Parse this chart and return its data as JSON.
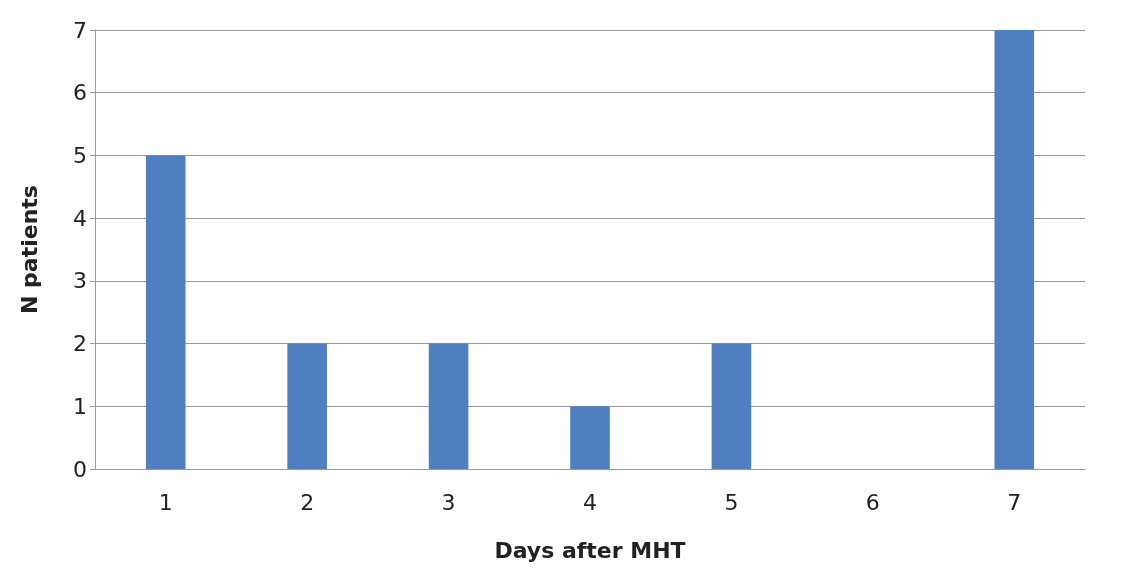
{
  "chart_data": {
    "type": "bar",
    "xlabel": "Days after MHT",
    "ylabel": "N patients",
    "categories": [
      "1",
      "2",
      "3",
      "4",
      "5",
      "6",
      "7"
    ],
    "values": [
      5,
      2,
      2,
      1,
      2,
      0,
      7
    ],
    "color": "#4f7fc0",
    "ylim": [
      0,
      7
    ],
    "yticks": [
      0,
      1,
      2,
      3,
      4,
      5,
      6,
      7
    ],
    "grid": "y"
  }
}
